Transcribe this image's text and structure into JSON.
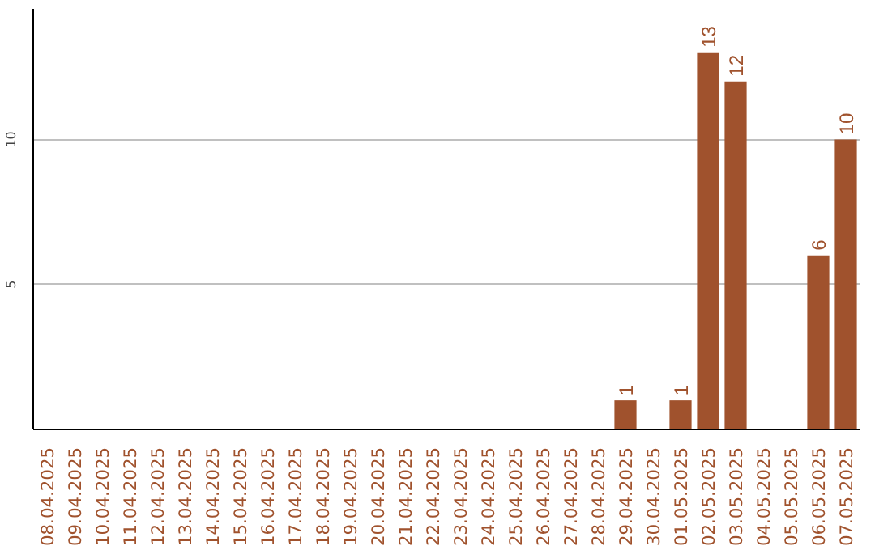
{
  "chart_data": {
    "type": "bar",
    "categories": [
      "08.04.2025",
      "09.04.2025",
      "10.04.2025",
      "11.04.2025",
      "12.04.2025",
      "13.04.2025",
      "14.04.2025",
      "15.04.2025",
      "16.04.2025",
      "17.04.2025",
      "18.04.2025",
      "19.04.2025",
      "20.04.2025",
      "21.04.2025",
      "22.04.2025",
      "23.04.2025",
      "24.04.2025",
      "25.04.2025",
      "26.04.2025",
      "27.04.2025",
      "28.04.2025",
      "29.04.2025",
      "30.04.2025",
      "01.05.2025",
      "02.05.2025",
      "03.05.2025",
      "04.05.2025",
      "05.05.2025",
      "06.05.2025",
      "07.05.2025"
    ],
    "values": [
      0,
      0,
      0,
      0,
      0,
      0,
      0,
      0,
      0,
      0,
      0,
      0,
      0,
      0,
      0,
      0,
      0,
      0,
      0,
      0,
      0,
      1,
      0,
      1,
      13,
      12,
      0,
      0,
      6,
      10
    ],
    "value_labels": [
      null,
      null,
      null,
      null,
      null,
      null,
      null,
      null,
      null,
      null,
      null,
      null,
      null,
      null,
      null,
      null,
      null,
      null,
      null,
      null,
      null,
      "1",
      null,
      "1",
      "13",
      "12",
      null,
      null,
      "6",
      "10"
    ],
    "color": "#a0522d",
    "ylim": [
      0,
      14.5
    ],
    "yticks": [
      5,
      10
    ],
    "grid": "y"
  }
}
